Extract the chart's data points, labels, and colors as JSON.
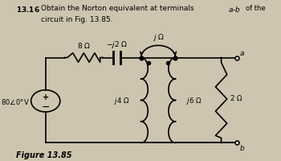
{
  "bg_color": "#cec5b0",
  "figure_label": "Figure 13.85",
  "terminal_a": "a",
  "terminal_b": "b"
}
